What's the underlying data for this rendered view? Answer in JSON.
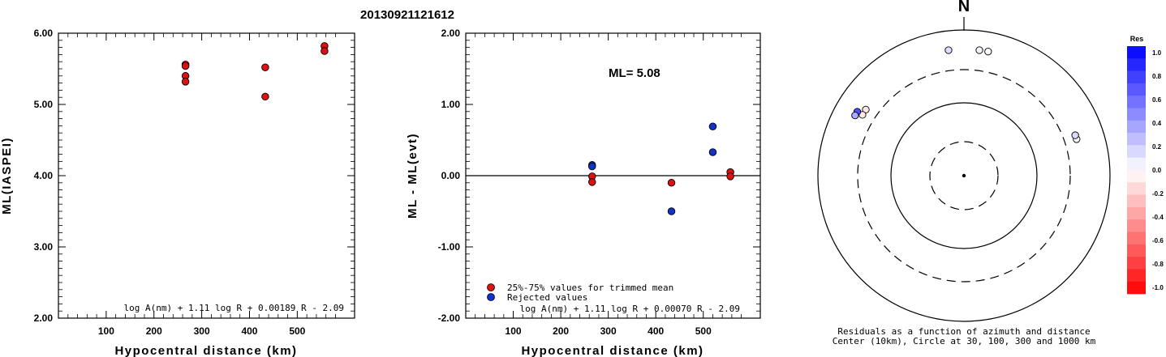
{
  "page_title": "20130921121612",
  "colors": {
    "accepted": "#dd1111",
    "rejected": "#1133cc",
    "axis": "#000000"
  },
  "chart_data": [
    {
      "type": "scatter",
      "name": "ml-vs-distance",
      "ylabel": "ML(IASPEI)",
      "xlabel": "Hypocentral distance (km)",
      "xlim": [
        0,
        620
      ],
      "ylim": [
        2.0,
        6.0
      ],
      "x_ticks": [
        100,
        200,
        300,
        400,
        500
      ],
      "x_tick_labels": [
        "100",
        "200",
        "300",
        "400",
        "500"
      ],
      "y_ticks": [
        2.0,
        3.0,
        4.0,
        5.0,
        6.0
      ],
      "y_tick_labels": [
        "2.00",
        "3.00",
        "4.00",
        "5.00",
        "6.00"
      ],
      "formula": "log A(nm) + 1.11 log R + 0.00189 R - 2.09",
      "series": [
        {
          "color": "accepted",
          "points": [
            {
              "x": 266,
              "y": 5.56
            },
            {
              "x": 266,
              "y": 5.54
            },
            {
              "x": 266,
              "y": 5.4
            },
            {
              "x": 266,
              "y": 5.32
            },
            {
              "x": 433,
              "y": 5.52
            },
            {
              "x": 433,
              "y": 5.11
            },
            {
              "x": 557,
              "y": 5.82
            },
            {
              "x": 557,
              "y": 5.75
            }
          ]
        }
      ]
    },
    {
      "type": "scatter",
      "name": "residual-vs-distance",
      "ylabel": "ML - ML(evt)",
      "xlabel": "Hypocentral distance (km)",
      "xlim": [
        0,
        620
      ],
      "ylim": [
        -2.0,
        2.0
      ],
      "x_ticks": [
        100,
        200,
        300,
        400,
        500
      ],
      "x_tick_labels": [
        "100",
        "200",
        "300",
        "400",
        "500"
      ],
      "y_ticks": [
        -2.0,
        -1.0,
        0.0,
        1.0,
        2.0
      ],
      "y_tick_labels": [
        "-2.00",
        "-1.00",
        "0.00",
        "1.00",
        "2.00"
      ],
      "zero_line": true,
      "ml_label": "ML= 5.08",
      "formula": "log A(nm) + 1.11 log R + 0.00070 R - 2.09",
      "legend": [
        {
          "label": "25%-75% values for trimmed mean",
          "color": "accepted"
        },
        {
          "label": "Rejected values",
          "color": "rejected"
        }
      ],
      "series": [
        {
          "name": "25%-75% values for trimmed mean",
          "color": "accepted",
          "points": [
            {
              "x": 266,
              "y": -0.01
            },
            {
              "x": 266,
              "y": -0.09
            },
            {
              "x": 433,
              "y": -0.1
            },
            {
              "x": 557,
              "y": 0.05
            },
            {
              "x": 557,
              "y": -0.01
            }
          ]
        },
        {
          "name": "Rejected values",
          "color": "rejected",
          "points": [
            {
              "x": 266,
              "y": 0.15
            },
            {
              "x": 266,
              "y": 0.13
            },
            {
              "x": 433,
              "y": -0.5
            },
            {
              "x": 520,
              "y": 0.69
            },
            {
              "x": 520,
              "y": 0.33
            }
          ]
        }
      ]
    },
    {
      "type": "polar-scatter",
      "name": "azimuth-residuals",
      "north_label": "N",
      "caption_line1": "Residuals as a function of azimuth and distance",
      "caption_line2": "Center (10km), Circle at 30, 100, 300 and 1000 km",
      "rings_km": [
        30,
        100,
        300,
        1000
      ],
      "colorbar_title": "Res",
      "colorbar_ticks": [
        "1.0",
        "0.8",
        "0.6",
        "0.4",
        "0.2",
        "0.0",
        "-0.2",
        "-0.4",
        "-0.6",
        "-0.8",
        "-1.0"
      ],
      "points": [
        {
          "azimuth_deg": 11,
          "distance_km": 557,
          "residual": -0.01
        },
        {
          "azimuth_deg": 7,
          "distance_km": 557,
          "residual": 0.05
        },
        {
          "azimuth_deg": 353,
          "distance_km": 557,
          "residual": 0.13
        },
        {
          "azimuth_deg": 304,
          "distance_km": 433,
          "residual": -0.1
        },
        {
          "azimuth_deg": 301,
          "distance_km": 433,
          "residual": -0.09
        },
        {
          "azimuth_deg": 301,
          "distance_km": 520,
          "residual": 0.69
        },
        {
          "azimuth_deg": 299,
          "distance_km": 520,
          "residual": 0.33
        },
        {
          "azimuth_deg": 72,
          "distance_km": 433,
          "residual": -0.01
        },
        {
          "azimuth_deg": 70,
          "distance_km": 433,
          "residual": 0.15
        }
      ]
    }
  ]
}
